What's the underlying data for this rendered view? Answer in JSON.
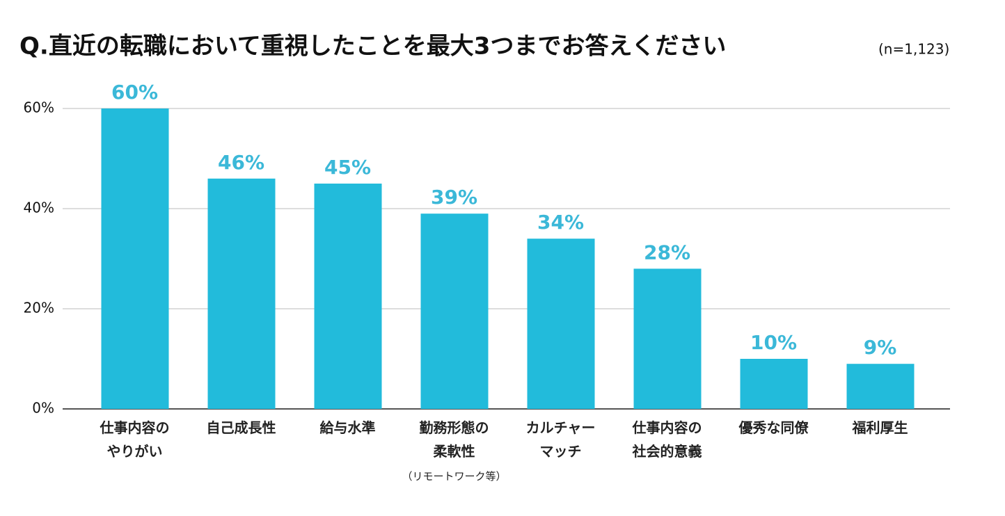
{
  "chart_data": {
    "type": "bar",
    "title": "Q.直近の転職において重視したことを最大3つまでお答えください",
    "subtitle": "(n=1,123)",
    "categories": [
      "仕事内容の\nやりがい",
      "自己成長性",
      "給与水準",
      "勤務形態の\n柔軟性",
      "カルチャー\nマッチ",
      "仕事内容の\n社会的意義",
      "優秀な同僚",
      "福利厚生"
    ],
    "annotation": "（リモートワーク等）",
    "values": [
      60,
      46,
      45,
      39,
      34,
      28,
      10,
      9
    ],
    "value_labels": [
      "60%",
      "46%",
      "45%",
      "39%",
      "34%",
      "28%",
      "10%",
      "9%"
    ],
    "color": "#22bbdb",
    "ylim": [
      0,
      60
    ],
    "yticks": [
      {
        "value": 0,
        "label": "0%"
      },
      {
        "value": 20,
        "label": "20%"
      },
      {
        "value": 40,
        "label": "40%"
      },
      {
        "value": 60,
        "label": "60%"
      }
    ],
    "grid": true
  }
}
